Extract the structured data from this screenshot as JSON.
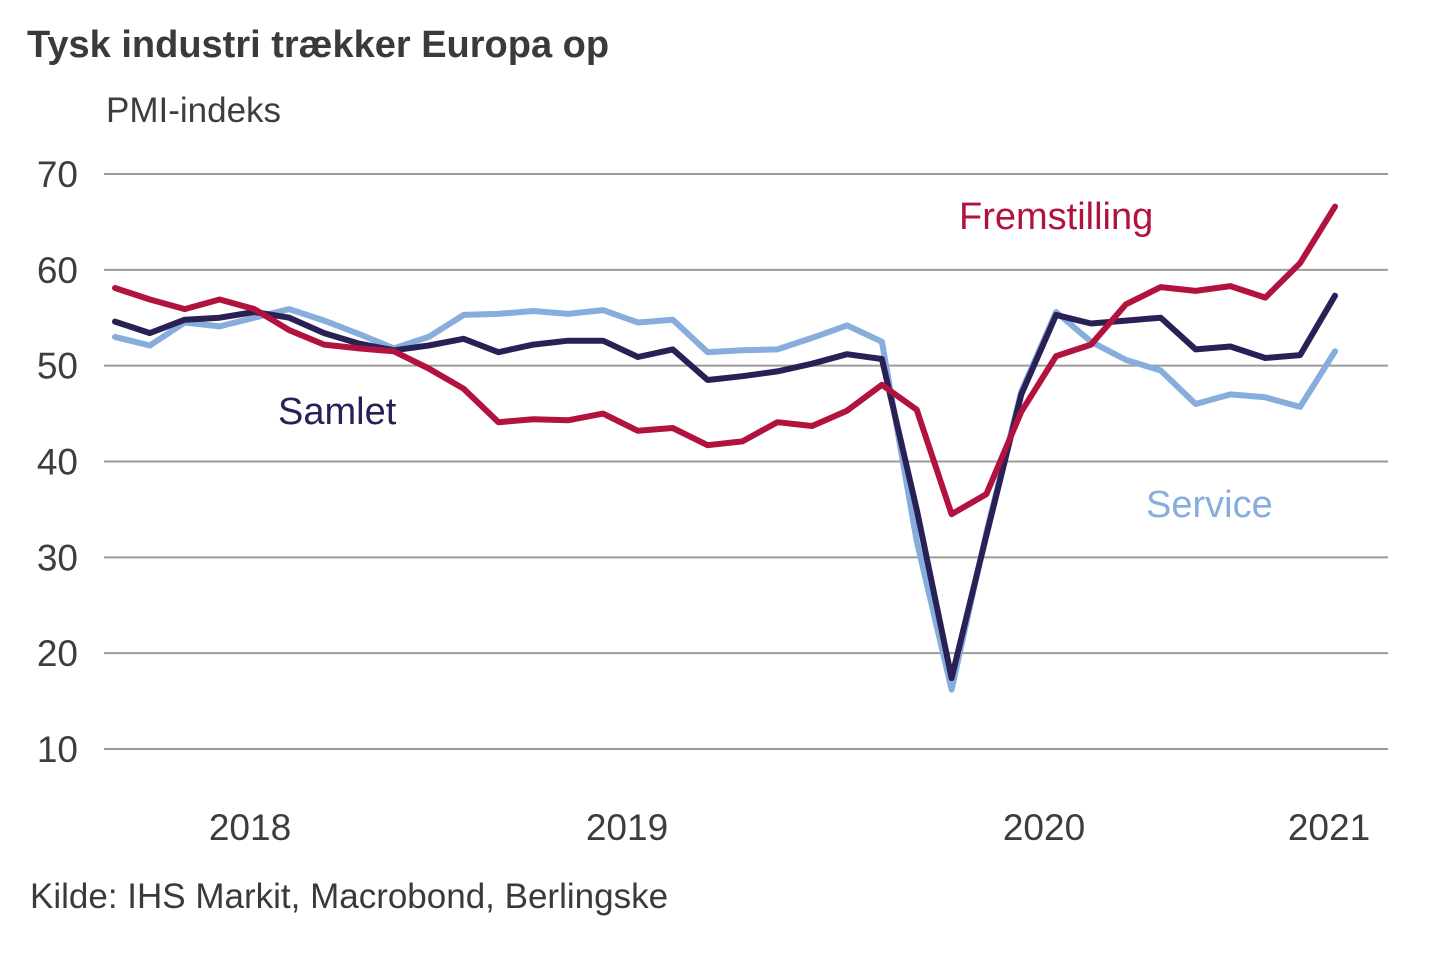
{
  "header": {
    "title": "Tysk industri trækker Europa op",
    "subtitle": "PMI-indeks"
  },
  "footer": {
    "source": "Kilde: IHS Markit, Macrobond, Berlingske"
  },
  "colors": {
    "fremstilling": "#b2123e",
    "samlet": "#292155",
    "service": "#86addb",
    "gridline": "#9b9b9b",
    "text": "#3d3d3d"
  },
  "chart_data": {
    "type": "line",
    "title": "Tysk industri trækker Europa op",
    "subtitle": "PMI-indeks",
    "frequency": "monthly",
    "x_start": "2018-04",
    "x_end": "2021-03",
    "months": [
      "2018-04",
      "2018-05",
      "2018-06",
      "2018-07",
      "2018-08",
      "2018-09",
      "2018-10",
      "2018-11",
      "2018-12",
      "2019-01",
      "2019-02",
      "2019-03",
      "2019-04",
      "2019-05",
      "2019-06",
      "2019-07",
      "2019-08",
      "2019-09",
      "2019-10",
      "2019-11",
      "2019-12",
      "2020-01",
      "2020-02",
      "2020-03",
      "2020-04",
      "2020-05",
      "2020-06",
      "2020-07",
      "2020-08",
      "2020-09",
      "2020-10",
      "2020-11",
      "2020-12",
      "2021-01",
      "2021-02",
      "2021-03"
    ],
    "x_tick_labels": [
      "2018",
      "2019",
      "2020",
      "2021"
    ],
    "y_ticks": [
      70,
      60,
      50,
      40,
      30,
      20,
      10
    ],
    "ylim": [
      10,
      70
    ],
    "grid": "horizontal",
    "legend_position": "inline-labels",
    "series": [
      {
        "name": "Fremstilling",
        "color_key": "fremstilling",
        "values": [
          58.1,
          56.9,
          55.9,
          56.9,
          55.9,
          53.7,
          52.2,
          51.8,
          51.5,
          49.7,
          47.6,
          44.1,
          44.4,
          44.3,
          45.0,
          43.2,
          43.5,
          41.7,
          42.1,
          44.1,
          43.7,
          45.3,
          48.0,
          45.4,
          34.5,
          36.6,
          45.2,
          51.0,
          52.2,
          56.4,
          58.2,
          57.8,
          58.3,
          57.1,
          60.7,
          66.6
        ]
      },
      {
        "name": "Samlet",
        "color_key": "samlet",
        "values": [
          54.6,
          53.4,
          54.8,
          55.0,
          55.6,
          55.0,
          53.4,
          52.3,
          51.6,
          52.1,
          52.8,
          51.4,
          52.2,
          52.6,
          52.6,
          50.9,
          51.7,
          48.5,
          48.9,
          49.4,
          50.2,
          51.2,
          50.7,
          35.0,
          17.4,
          32.3,
          47.0,
          55.3,
          54.4,
          54.7,
          55.0,
          51.7,
          52.0,
          50.8,
          51.1,
          57.3
        ]
      },
      {
        "name": "Service",
        "color_key": "service",
        "values": [
          53.0,
          52.1,
          54.5,
          54.1,
          55.0,
          55.9,
          54.7,
          53.3,
          51.8,
          53.0,
          55.3,
          55.4,
          55.7,
          55.4,
          55.8,
          54.5,
          54.8,
          51.4,
          51.6,
          51.7,
          52.9,
          54.2,
          52.5,
          31.7,
          16.2,
          32.6,
          47.3,
          55.6,
          52.5,
          50.6,
          49.5,
          46.0,
          47.0,
          46.7,
          45.7,
          51.5
        ]
      }
    ]
  }
}
